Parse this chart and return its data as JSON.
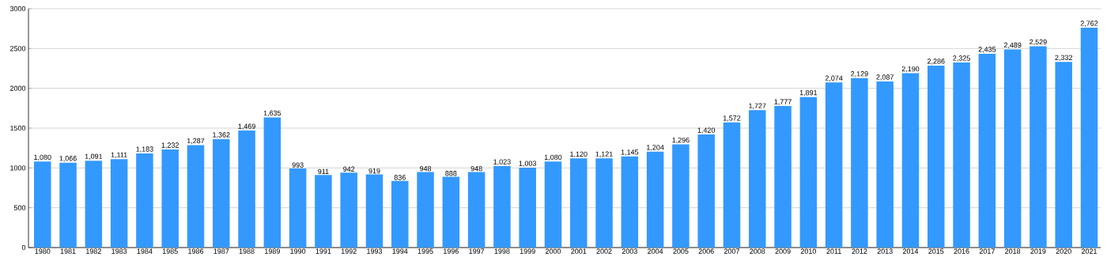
{
  "chart_data": {
    "type": "bar",
    "categories": [
      "1980",
      "1981",
      "1982",
      "1983",
      "1984",
      "1985",
      "1986",
      "1987",
      "1988",
      "1989",
      "1990",
      "1991",
      "1992",
      "1993",
      "1994",
      "1995",
      "1996",
      "1997",
      "1998",
      "1999",
      "2000",
      "2001",
      "2002",
      "2003",
      "2004",
      "2005",
      "2006",
      "2007",
      "2008",
      "2009",
      "2010",
      "2011",
      "2012",
      "2013",
      "2014",
      "2015",
      "2016",
      "2017",
      "2018",
      "2019",
      "2020",
      "2021"
    ],
    "values": [
      1080,
      1066,
      1091,
      1111,
      1183,
      1232,
      1287,
      1362,
      1469,
      1635,
      993,
      911,
      942,
      919,
      836,
      948,
      888,
      948,
      1023,
      1003,
      1080,
      1120,
      1121,
      1145,
      1204,
      1296,
      1420,
      1572,
      1727,
      1777,
      1891,
      2074,
      2129,
      2087,
      2190,
      2286,
      2325,
      2435,
      2489,
      2529,
      2332,
      2762
    ],
    "value_labels": [
      "1,080",
      "1,066",
      "1,091",
      "1,111",
      "1,183",
      "1,232",
      "1,287",
      "1,362",
      "1,469",
      "1,635",
      "993",
      "911",
      "942",
      "919",
      "836",
      "948",
      "888",
      "948",
      "1,023",
      "1,003",
      "1,080",
      "1,120",
      "1,121",
      "1,145",
      "1,204",
      "1,296",
      "1,420",
      "1,572",
      "1,727",
      "1,777",
      "1,891",
      "2,074",
      "2,129",
      "2,087",
      "2,190",
      "2,286",
      "2,325",
      "2,435",
      "2,489",
      "2,529",
      "2,332",
      "2,762"
    ],
    "color": "#3399ff",
    "ylim": [
      0,
      3000
    ],
    "yticks": [
      0,
      500,
      1000,
      1500,
      2000,
      2500,
      3000
    ],
    "grid": "y"
  }
}
